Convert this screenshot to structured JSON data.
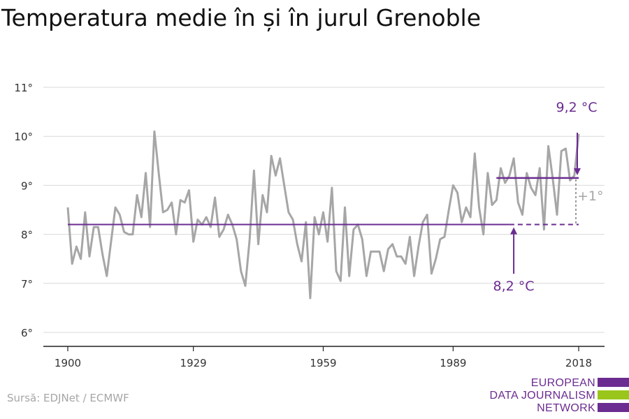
{
  "title": "Temperatura medie în și în jurul Grenoble",
  "source": "Sursă: EDJNet / ECMWF",
  "logo": {
    "line1": "EUROPEAN",
    "line2": "DATA JOURNALISM",
    "line3": "NETWORK",
    "colors": [
      "#6b2c91",
      "#9ac61b",
      "#6b2c91"
    ]
  },
  "colors": {
    "series": "#a6a6a6",
    "accent": "#6b2c91",
    "axis": "#222222",
    "grid": "#d9d9d9"
  },
  "chart_data": {
    "type": "line",
    "title": "Temperatura medie în și în jurul Grenoble",
    "xlabel": "",
    "ylabel": "",
    "x_ticks": [
      "1900",
      "1929",
      "1959",
      "1989",
      "2018"
    ],
    "y_ticks": [
      "6°",
      "7°",
      "8°",
      "9°",
      "10°",
      "11°"
    ],
    "xlim": [
      1900,
      2018
    ],
    "ylim": [
      6,
      11
    ],
    "grid": true,
    "series": [
      {
        "x": [
          1900,
          1901,
          1902,
          1903,
          1904,
          1905,
          1906,
          1907,
          1908,
          1909,
          1910,
          1911,
          1912,
          1913,
          1914,
          1915,
          1916,
          1917,
          1918,
          1919,
          1920,
          1921,
          1922,
          1923,
          1924,
          1925,
          1926,
          1927,
          1928,
          1929,
          1930,
          1931,
          1932,
          1933,
          1934,
          1935,
          1936,
          1937,
          1938,
          1939,
          1940,
          1941,
          1942,
          1943,
          1944,
          1945,
          1946,
          1947,
          1948,
          1949,
          1950,
          1951,
          1952,
          1953,
          1954,
          1955,
          1956,
          1957,
          1958,
          1959,
          1960,
          1961,
          1962,
          1963,
          1964,
          1965,
          1966,
          1967,
          1968,
          1969,
          1970,
          1971,
          1972,
          1973,
          1974,
          1975,
          1976,
          1977,
          1978,
          1979,
          1980,
          1981,
          1982,
          1983,
          1984,
          1985,
          1986,
          1987,
          1988,
          1989,
          1990,
          1991,
          1992,
          1993,
          1994,
          1995,
          1996,
          1997,
          1998,
          1999,
          2000,
          2001,
          2002,
          2003,
          2004,
          2005,
          2006,
          2007,
          2008,
          2009,
          2010,
          2011,
          2012,
          2013,
          2014,
          2015,
          2016,
          2017,
          2018
        ],
        "values": [
          8.55,
          7.4,
          7.75,
          7.5,
          8.45,
          7.55,
          8.15,
          8.15,
          7.6,
          7.15,
          7.85,
          8.55,
          8.4,
          8.05,
          8.0,
          8.0,
          8.8,
          8.35,
          9.25,
          8.15,
          10.1,
          9.25,
          8.45,
          8.5,
          8.65,
          8.0,
          8.7,
          8.65,
          8.9,
          7.85,
          8.3,
          8.2,
          8.35,
          8.15,
          8.75,
          7.95,
          8.1,
          8.4,
          8.2,
          7.9,
          7.25,
          6.95,
          7.9,
          9.3,
          7.8,
          8.8,
          8.45,
          9.6,
          9.2,
          9.55,
          9.0,
          8.45,
          8.3,
          7.8,
          7.45,
          8.25,
          6.7,
          8.35,
          8.0,
          8.45,
          7.85,
          8.95,
          7.25,
          7.05,
          8.55,
          7.15,
          8.1,
          8.2,
          7.9,
          7.15,
          7.65,
          7.65,
          7.65,
          7.25,
          7.7,
          7.8,
          7.55,
          7.55,
          7.4,
          7.95,
          7.15,
          7.75,
          8.25,
          8.4,
          7.2,
          7.5,
          7.9,
          7.95,
          8.5,
          9.0,
          8.85,
          8.25,
          8.55,
          8.35,
          9.65,
          8.55,
          8.0,
          9.25,
          8.6,
          8.7,
          9.35,
          9.05,
          9.2,
          9.55,
          8.65,
          8.4,
          9.25,
          8.95,
          8.8,
          9.35,
          8.1,
          9.8,
          9.15,
          8.4,
          9.7,
          9.75,
          9.1,
          9.2,
          10.05
        ]
      }
    ],
    "annotations": [
      {
        "label": "8,2 °C",
        "value": 8.2,
        "from": 1900,
        "to": 2018,
        "solid_until": 2002
      },
      {
        "label": "9,2 °C",
        "value": 9.15,
        "from": 1999,
        "to": 2018
      },
      {
        "label": "+1°"
      }
    ]
  }
}
